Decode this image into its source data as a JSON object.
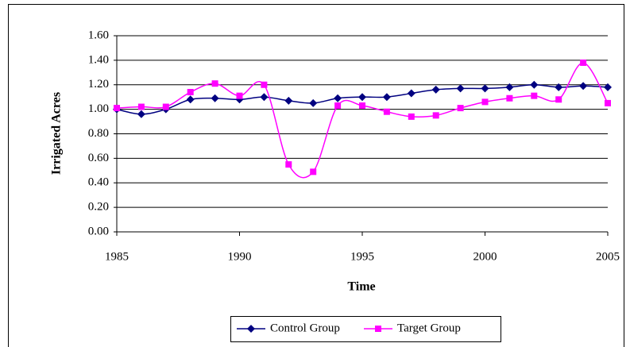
{
  "chart_data": {
    "type": "line",
    "smooth": true,
    "grid": true,
    "x_label": "Time",
    "y_label": "Irrigated Acres",
    "x": [
      1985,
      1986,
      1987,
      1988,
      1989,
      1990,
      1991,
      1992,
      1993,
      1994,
      1995,
      1996,
      1997,
      1998,
      1999,
      2000,
      2001,
      2002,
      2003,
      2004,
      2005
    ],
    "series": [
      {
        "name": "Control Group",
        "color": "#000080",
        "marker": "diamond",
        "values": [
          1.0,
          0.96,
          1.0,
          1.08,
          1.09,
          1.08,
          1.1,
          1.07,
          1.05,
          1.09,
          1.1,
          1.1,
          1.13,
          1.16,
          1.17,
          1.17,
          1.18,
          1.2,
          1.18,
          1.19,
          1.18
        ]
      },
      {
        "name": "Target Group",
        "color": "#ff00ff",
        "marker": "square",
        "values": [
          1.01,
          1.02,
          1.02,
          1.14,
          1.21,
          1.11,
          1.2,
          0.55,
          0.49,
          1.03,
          1.03,
          0.98,
          0.94,
          0.95,
          1.01,
          1.06,
          1.09,
          1.11,
          1.08,
          1.38,
          1.05
        ]
      }
    ],
    "xlim": [
      1985,
      2005
    ],
    "xticks": [
      1985,
      1990,
      1995,
      2000,
      2005
    ],
    "ylim": [
      0,
      1.6
    ],
    "yticks": [
      {
        "value": 0,
        "label": "0.00"
      },
      {
        "value": 0.2,
        "label": "0.20"
      },
      {
        "value": 0.4,
        "label": "0.40"
      },
      {
        "value": 0.6,
        "label": "0.60"
      },
      {
        "value": 0.8,
        "label": "0.80"
      },
      {
        "value": 1.0,
        "label": "1.00"
      },
      {
        "value": 1.2,
        "label": "1.20"
      },
      {
        "value": 1.4,
        "label": "1.40"
      },
      {
        "value": 1.6,
        "label": "1.60"
      }
    ],
    "legend": "bottom"
  }
}
